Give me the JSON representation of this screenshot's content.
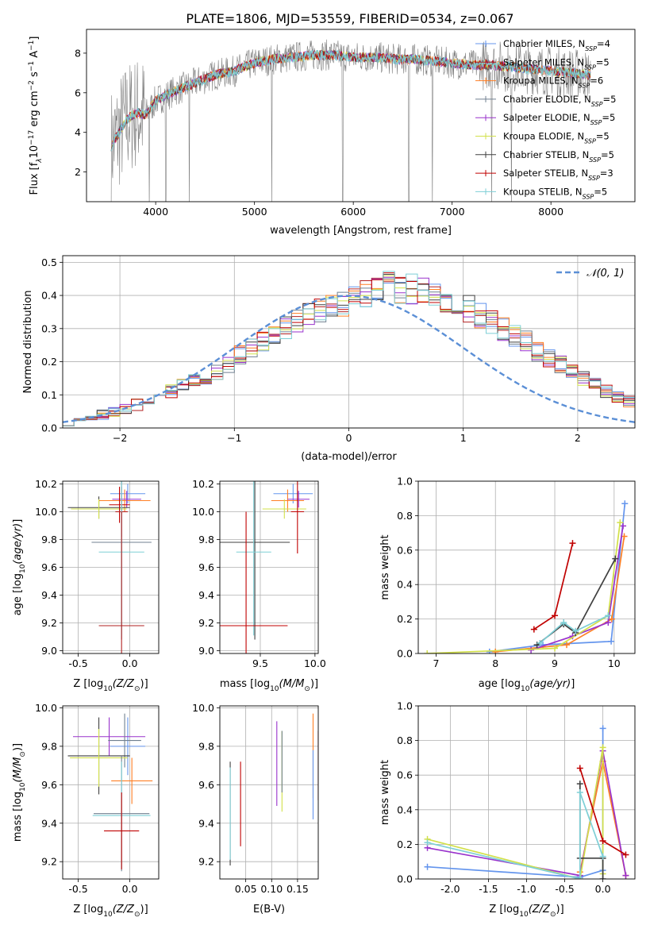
{
  "figure_title": "PLATE=1806, MJD=53559, FIBERID=0534, z=0.067",
  "series": [
    {
      "name": "Chabrier MILES",
      "nssp": "4",
      "color": "#6495ed"
    },
    {
      "name": "Salpeter MILES",
      "nssp": "5",
      "color": "#b22222"
    },
    {
      "name": "Kroupa MILES",
      "nssp": "6",
      "color": "#ff7f24"
    },
    {
      "name": "Chabrier ELODIE",
      "nssp": "5",
      "color": "#708090"
    },
    {
      "name": "Salpeter ELODIE",
      "nssp": "5",
      "color": "#9932cc"
    },
    {
      "name": "Kroupa ELODIE",
      "nssp": "5",
      "color": "#d2e04a"
    },
    {
      "name": "Chabrier STELIB",
      "nssp": "5",
      "color": "#404040"
    },
    {
      "name": "Salpeter STELIB",
      "nssp": "3",
      "color": "#c00000"
    },
    {
      "name": "Kroupa STELIB",
      "nssp": "5",
      "color": "#7ecfd6"
    }
  ],
  "chart_data": [
    {
      "id": "spectrum",
      "type": "line",
      "xlabel": "wavelength [Angstrom, rest frame]",
      "ylabel": "Flux [f",
      "xlim": [
        3300,
        8850
      ],
      "ylim": [
        0.5,
        9.2
      ],
      "xticks": [
        4000,
        5000,
        6000,
        7000,
        8000
      ],
      "yticks": [
        2,
        4,
        6,
        8
      ],
      "legend": "right",
      "continuum": {
        "x": [
          3550,
          3700,
          3800,
          3900,
          4000,
          4200,
          4400,
          4600,
          4800,
          5000,
          5200,
          5400,
          5600,
          5800,
          6000,
          6200,
          6400,
          6600,
          6800,
          7000,
          7200,
          7400,
          7600,
          7800,
          8000,
          8200,
          8400
        ],
        "y": [
          3.3,
          4.6,
          5.0,
          4.9,
          5.6,
          6.1,
          6.5,
          6.9,
          7.1,
          7.5,
          7.7,
          7.8,
          7.9,
          7.9,
          7.8,
          7.8,
          7.7,
          7.7,
          7.6,
          7.5,
          7.4,
          7.4,
          7.3,
          7.2,
          7.1,
          7.0,
          6.9
        ]
      },
      "absorption_lines": [
        3934,
        4102,
        4340,
        5175,
        5893,
        6563,
        6800,
        7400,
        7600
      ]
    },
    {
      "id": "residuals",
      "type": "bar",
      "xlabel": "(data-model)/error",
      "ylabel": "Normed distribution",
      "xlim": [
        -2.5,
        2.5
      ],
      "ylim": [
        0,
        0.52
      ],
      "xticks": [
        -2,
        -1,
        0,
        1,
        2
      ],
      "yticks": [
        0.0,
        0.1,
        0.2,
        0.3,
        0.4,
        0.5
      ],
      "gaussian_label": "𝒩(0, 1)",
      "bin_width": 0.1,
      "bins_start": -2.5,
      "histogram_values": [
        0.02,
        0.03,
        0.03,
        0.04,
        0.05,
        0.06,
        0.07,
        0.08,
        0.1,
        0.11,
        0.13,
        0.14,
        0.15,
        0.17,
        0.19,
        0.22,
        0.24,
        0.26,
        0.28,
        0.3,
        0.32,
        0.34,
        0.35,
        0.37,
        0.38,
        0.4,
        0.41,
        0.42,
        0.43,
        0.42,
        0.42,
        0.41,
        0.4,
        0.39,
        0.38,
        0.36,
        0.34,
        0.32,
        0.3,
        0.28,
        0.26,
        0.23,
        0.21,
        0.19,
        0.17,
        0.15,
        0.13,
        0.11,
        0.09,
        0.08
      ]
    },
    {
      "id": "age-vs-Z",
      "type": "scatter",
      "xlabel": "Z [log",
      "ylabel": "age  [log",
      "xlim": [
        -0.65,
        0.28
      ],
      "ylim": [
        8.98,
        10.22
      ],
      "xticks": [
        -0.5,
        0.0
      ],
      "yticks": [
        9.0,
        9.2,
        9.4,
        9.6,
        9.8,
        10.0,
        10.2
      ],
      "points": [
        {
          "x": -0.02,
          "xerr": 0.17,
          "y": 10.13,
          "yerr": 0.07,
          "s": 0
        },
        {
          "x": -0.05,
          "xerr": 0.25,
          "y": 10.08,
          "yerr": 0.08,
          "s": 2
        },
        {
          "x": -0.03,
          "xerr": 0.14,
          "y": 10.09,
          "yerr": 0.06,
          "s": 4
        },
        {
          "x": -0.3,
          "xerr": 0.3,
          "y": 10.03,
          "yerr": 0.08,
          "s": 6
        },
        {
          "x": -0.3,
          "xerr": 0.27,
          "y": 10.02,
          "yerr": 0.07,
          "s": 5
        },
        {
          "x": -0.1,
          "xerr": 0.1,
          "y": 10.05,
          "yerr": 0.13,
          "s": 7
        },
        {
          "x": -0.08,
          "xerr": 0.06,
          "y": 10.0,
          "yerr": 0.18,
          "s": 1
        },
        {
          "x": -0.08,
          "xerr": 0.29,
          "y": 9.78,
          "yerr": 0.7,
          "s": 3
        },
        {
          "x": -0.08,
          "xerr": 0.22,
          "y": 9.71,
          "yerr": 0.6,
          "s": 8
        },
        {
          "x": -0.08,
          "xerr": 0.22,
          "y": 9.18,
          "yerr": 0.82,
          "s": 1
        }
      ]
    },
    {
      "id": "age-vs-mass",
      "type": "scatter",
      "xlabel": "mass [log",
      "ylabel": "",
      "xlim": [
        9.13,
        10.03
      ],
      "ylim": [
        8.98,
        10.22
      ],
      "xticks": [
        9.5,
        10.0
      ],
      "yticks": [
        9.0,
        9.2,
        9.4,
        9.6,
        9.8,
        10.0,
        10.2
      ],
      "points": [
        {
          "x": 9.8,
          "xerr": 0.18,
          "y": 10.13,
          "yerr": 0.07,
          "s": 0
        },
        {
          "x": 9.75,
          "xerr": 0.15,
          "y": 10.08,
          "yerr": 0.08,
          "s": 2
        },
        {
          "x": 9.85,
          "xerr": 0.1,
          "y": 10.09,
          "yerr": 0.06,
          "s": 4
        },
        {
          "x": 9.72,
          "xerr": 0.2,
          "y": 10.02,
          "yerr": 0.07,
          "s": 5
        },
        {
          "x": 9.84,
          "xerr": 0.06,
          "y": 10.0,
          "yerr": 0.3,
          "s": 7
        },
        {
          "x": 9.45,
          "xerr": 0.32,
          "y": 9.78,
          "yerr": 0.7,
          "s": 6
        },
        {
          "x": 9.44,
          "xerr": 0.16,
          "y": 9.71,
          "yerr": 0.6,
          "s": 8
        },
        {
          "x": 9.37,
          "xerr": 0.38,
          "y": 9.18,
          "yerr": 0.82,
          "s": 7
        }
      ]
    },
    {
      "id": "weight-vs-age",
      "type": "line",
      "xlabel": "age  [log",
      "ylabel": "mass weight",
      "xlim": [
        6.7,
        10.35
      ],
      "ylim": [
        0.0,
        1.0
      ],
      "xticks": [
        7,
        8,
        9,
        10
      ],
      "yticks": [
        0.0,
        0.2,
        0.4,
        0.6,
        0.8,
        1.0
      ],
      "series_points": [
        {
          "s": 0,
          "x": [
            7.9,
            8.8,
            9.95,
            10.18
          ],
          "y": [
            0.01,
            0.05,
            0.07,
            0.87
          ]
        },
        {
          "s": 2,
          "x": [
            8.0,
            9.2,
            9.96,
            10.17
          ],
          "y": [
            0.01,
            0.05,
            0.2,
            0.68
          ]
        },
        {
          "s": 4,
          "x": [
            8.6,
            9.3,
            9.9,
            10.15
          ],
          "y": [
            0.02,
            0.1,
            0.18,
            0.74
          ]
        },
        {
          "s": 5,
          "x": [
            6.85,
            9.0,
            9.9,
            10.1
          ],
          "y": [
            0.0,
            0.03,
            0.22,
            0.76
          ]
        },
        {
          "s": 6,
          "x": [
            8.7,
            9.15,
            9.35,
            10.02
          ],
          "y": [
            0.05,
            0.17,
            0.12,
            0.55
          ]
        },
        {
          "s": 8,
          "x": [
            8.75,
            9.15,
            9.35,
            9.9
          ],
          "y": [
            0.06,
            0.18,
            0.13,
            0.22
          ]
        },
        {
          "s": 7,
          "x": [
            8.65,
            9.0,
            9.3
          ],
          "y": [
            0.14,
            0.22,
            0.64
          ]
        }
      ]
    },
    {
      "id": "mass-vs-Z",
      "type": "scatter",
      "xlabel": "Z [log",
      "ylabel": "mass [log",
      "xlim": [
        -0.65,
        0.28
      ],
      "ylim": [
        9.11,
        10.01
      ],
      "xticks": [
        -0.5,
        0.0
      ],
      "yticks": [
        9.2,
        9.4,
        9.6,
        9.8,
        10.0
      ],
      "points": [
        {
          "x": -0.02,
          "xerr": 0.17,
          "y": 9.8,
          "yerr": 0.15,
          "s": 0
        },
        {
          "x": -0.2,
          "xerr": 0.35,
          "y": 9.85,
          "yerr": 0.1,
          "s": 4
        },
        {
          "x": -0.05,
          "xerr": 0.16,
          "y": 9.83,
          "yerr": 0.14,
          "s": 3
        },
        {
          "x": -0.3,
          "xerr": 0.3,
          "y": 9.75,
          "yerr": 0.2,
          "s": 6
        },
        {
          "x": -0.3,
          "xerr": 0.28,
          "y": 9.74,
          "yerr": 0.15,
          "s": 5
        },
        {
          "x": 0.02,
          "xerr": 0.2,
          "y": 9.62,
          "yerr": 0.12,
          "s": 2
        },
        {
          "x": -0.08,
          "xerr": 0.27,
          "y": 9.45,
          "yerr": 0.3,
          "s": 3
        },
        {
          "x": -0.08,
          "xerr": 0.28,
          "y": 9.44,
          "yerr": 0.28,
          "s": 8
        },
        {
          "x": -0.08,
          "xerr": 0.17,
          "y": 9.36,
          "yerr": 0.2,
          "s": 7
        }
      ]
    },
    {
      "id": "mass-vs-EBV",
      "type": "scatter",
      "xlabel": "E(B-V)",
      "ylabel": "",
      "xlim": [
        0.0,
        0.19
      ],
      "ylim": [
        9.11,
        10.01
      ],
      "xticks": [
        0.05,
        0.1,
        0.15
      ],
      "yticks": [
        9.2,
        9.4,
        9.6,
        9.8,
        10.0
      ],
      "points": [
        {
          "x": 0.02,
          "xerr": 0,
          "y": 9.45,
          "yerr": 0.27,
          "s": 6
        },
        {
          "x": 0.02,
          "xerr": 0,
          "y": 9.45,
          "yerr": 0.24,
          "s": 8
        },
        {
          "x": 0.04,
          "xerr": 0,
          "y": 9.5,
          "yerr": 0.22,
          "s": 7
        },
        {
          "x": 0.11,
          "xerr": 0,
          "y": 9.71,
          "yerr": 0.22,
          "s": 4
        },
        {
          "x": 0.12,
          "xerr": 0,
          "y": 9.67,
          "yerr": 0.21,
          "s": 5
        },
        {
          "x": 0.12,
          "xerr": 0,
          "y": 9.72,
          "yerr": 0.16,
          "s": 3
        },
        {
          "x": 0.18,
          "xerr": 0,
          "y": 9.75,
          "yerr": 0.22,
          "s": 2
        },
        {
          "x": 0.18,
          "xerr": 0,
          "y": 9.6,
          "yerr": 0.18,
          "s": 0
        },
        {
          "x": 0.19,
          "xerr": 0,
          "y": 9.7,
          "yerr": 0.18,
          "s": 1
        }
      ]
    },
    {
      "id": "weight-vs-Z",
      "type": "line",
      "xlabel": "Z [log",
      "ylabel": "mass weight",
      "xlim": [
        -2.42,
        0.42
      ],
      "ylim": [
        0.0,
        1.0
      ],
      "xticks": [
        -2.0,
        -1.5,
        -1.0,
        -0.5,
        0.0
      ],
      "yticks": [
        0.0,
        0.2,
        0.4,
        0.6,
        0.8,
        1.0
      ],
      "series_points": [
        {
          "s": 0,
          "x": [
            -2.3,
            -0.3,
            0.0,
            0.0
          ],
          "y": [
            0.07,
            0.01,
            0.05,
            0.87
          ]
        },
        {
          "s": 2,
          "x": [
            -0.3,
            0.0,
            0.3
          ],
          "y": [
            0.04,
            0.68,
            0.02
          ]
        },
        {
          "s": 4,
          "x": [
            -2.3,
            -0.3,
            0.0,
            0.3
          ],
          "y": [
            0.18,
            0.02,
            0.74,
            0.02
          ]
        },
        {
          "s": 5,
          "x": [
            -2.3,
            -0.3,
            0.0,
            0.0
          ],
          "y": [
            0.23,
            0.0,
            0.76,
            0.03
          ]
        },
        {
          "s": 6,
          "x": [
            -0.3,
            -0.3,
            0.0,
            0.0
          ],
          "y": [
            0.55,
            0.12,
            0.12,
            0.0
          ]
        },
        {
          "s": 8,
          "x": [
            -2.3,
            -0.3,
            -0.3,
            0.0
          ],
          "y": [
            0.21,
            0.0,
            0.5,
            0.13
          ]
        },
        {
          "s": 7,
          "x": [
            -0.3,
            0.0,
            0.3
          ],
          "y": [
            0.64,
            0.22,
            0.14
          ]
        }
      ]
    }
  ]
}
